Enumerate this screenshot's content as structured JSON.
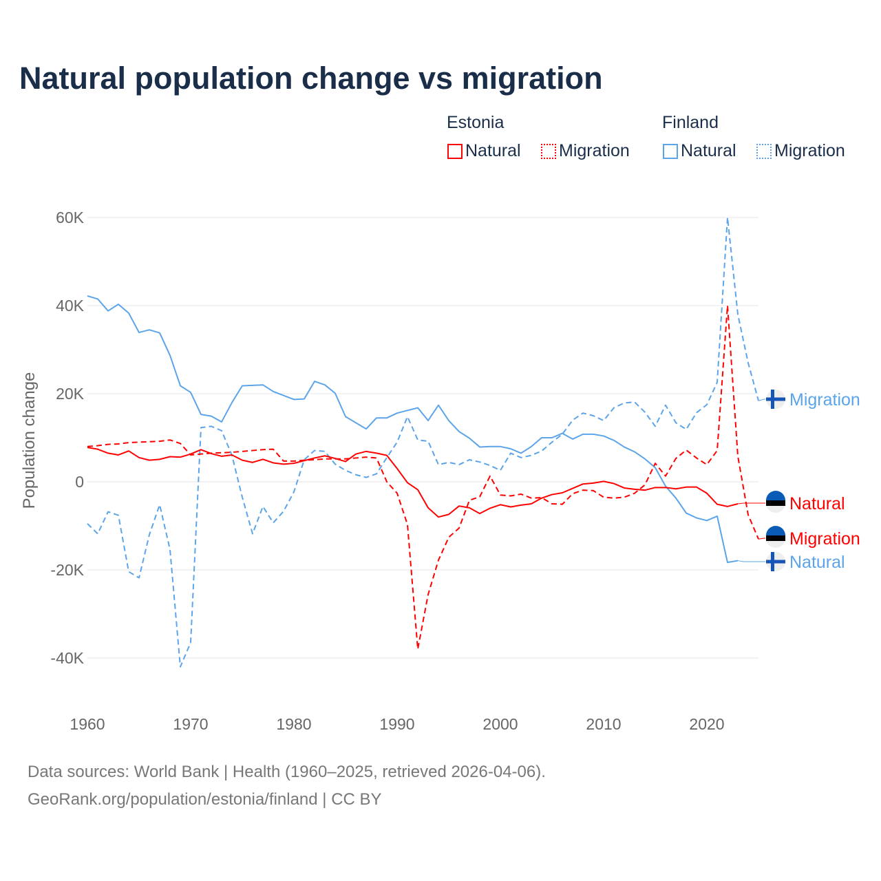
{
  "title": "Natural population change vs migration",
  "legend": {
    "groups": [
      {
        "name": "Estonia",
        "items": [
          "Natural",
          "Migration"
        ]
      },
      {
        "name": "Finland",
        "items": [
          "Natural",
          "Migration"
        ]
      }
    ]
  },
  "colors": {
    "estonia": "#ff0000",
    "finland": "#5ba4ea"
  },
  "footer": {
    "line1": "Data sources: World Bank | Health (1960–2025, retrieved 2026-04-06).",
    "line2": "GeoRank.org/population/estonia/finland | CC BY"
  },
  "chart_data": {
    "type": "line",
    "title": "Natural population change vs migration",
    "xlabel": "",
    "ylabel": "Population change",
    "xlim": [
      1960,
      2025
    ],
    "ylim": [
      -50000,
      65000
    ],
    "xticks": [
      1960,
      1970,
      1980,
      1990,
      2000,
      2010,
      2020
    ],
    "yticks": [
      {
        "v": 60000,
        "l": "60K"
      },
      {
        "v": 40000,
        "l": "40K"
      },
      {
        "v": 20000,
        "l": "20K"
      },
      {
        "v": 0,
        "l": "0"
      },
      {
        "v": -20000,
        "l": "-20K"
      },
      {
        "v": -40000,
        "l": "-40K"
      }
    ],
    "x_start": 1960,
    "series": [
      {
        "name": "Finland Natural",
        "label": "Natural",
        "country": "finland",
        "dash": false,
        "values_k": [
          42.2,
          41.5,
          38.8,
          40.3,
          38.3,
          33.9,
          34.5,
          33.8,
          28.7,
          21.8,
          20.3,
          15.3,
          14.9,
          13.6,
          18,
          21.8,
          21.9,
          22,
          20.5,
          19.6,
          18.7,
          18.8,
          22.8,
          22,
          20.1,
          14.8,
          13.4,
          12,
          14.5,
          14.5,
          15.6,
          16.2,
          16.8,
          13.9,
          17.4,
          13.9,
          11.4,
          9.9,
          7.9,
          8,
          8,
          7.5,
          6.5,
          8,
          10,
          10,
          11,
          9.7,
          10.8,
          10.8,
          10.4,
          9.4,
          7.9,
          6.8,
          5.2,
          3.2,
          -1,
          -3.7,
          -7.1,
          -8.2,
          -8.8,
          -7.8,
          -18.3,
          -17.9,
          null,
          null
        ]
      },
      {
        "name": "Finland Migration",
        "label": "Migration",
        "country": "finland",
        "dash": true,
        "values_k": [
          -9.5,
          -11.8,
          -6.8,
          -7.6,
          -20.4,
          -21.8,
          -12,
          -5.2,
          -15.4,
          -42,
          -36.5,
          12.3,
          12.6,
          11.6,
          6,
          -3.5,
          -11.8,
          -5.6,
          -9.3,
          -6.7,
          -2.3,
          5,
          7.1,
          6.9,
          4,
          2.6,
          1.6,
          1,
          1.8,
          5.5,
          9,
          14.8,
          9.5,
          9.2,
          3.9,
          4.4,
          3.9,
          5,
          4.5,
          3.7,
          2.6,
          6.5,
          5.5,
          6,
          7,
          9,
          10.8,
          14,
          15.6,
          15,
          13.9,
          16.8,
          17.9,
          18.1,
          15.8,
          12.6,
          17.4,
          13.4,
          11.9,
          15.7,
          17.5,
          22.6,
          60,
          38,
          27,
          18.4
        ]
      },
      {
        "name": "Estonia Natural",
        "label": "Natural",
        "country": "estonia",
        "dash": false,
        "values_k": [
          7.8,
          7.4,
          6.5,
          6.1,
          7,
          5.5,
          4.9,
          5.1,
          5.7,
          5.6,
          6.3,
          7.3,
          6.4,
          5.8,
          6.1,
          4.9,
          4.4,
          5.1,
          4.3,
          4,
          4.2,
          4.8,
          5.4,
          5.9,
          5.3,
          4.6,
          6.3,
          6.9,
          6.5,
          6,
          3,
          -0.2,
          -1.8,
          -5.9,
          -8,
          -7.4,
          -5.5,
          -5.9,
          -7.2,
          -6,
          -5.2,
          -5.7,
          -5.3,
          -5,
          -3.7,
          -2.9,
          -2.5,
          -1.5,
          -0.5,
          -0.3,
          0.1,
          -0.4,
          -1.4,
          -1.7,
          -1.9,
          -1.3,
          -1.3,
          -1.6,
          -1.2,
          -1.2,
          -2.6,
          -5.1,
          -5.6,
          -5,
          null,
          null
        ]
      },
      {
        "name": "Estonia Migration",
        "label": "Migration",
        "country": "estonia",
        "dash": true,
        "values_k": [
          8,
          8.2,
          8.5,
          8.6,
          8.9,
          9,
          9.1,
          9.2,
          9.5,
          8.7,
          6.1,
          6.3,
          6.5,
          6.6,
          6.7,
          6.9,
          7.1,
          7.3,
          7.4,
          4.7,
          4.7,
          4.9,
          5,
          5.2,
          5.2,
          5.2,
          5.4,
          5.6,
          5.4,
          0,
          -2.6,
          -9.7,
          -38,
          -25.6,
          -17.8,
          -12.6,
          -10.5,
          -4.2,
          -3.4,
          1.3,
          -3,
          -3.2,
          -2.8,
          -3.7,
          -3.6,
          -5,
          -5.1,
          -2.7,
          -1.9,
          -2,
          -3.5,
          -3.7,
          -3.5,
          -2.6,
          -0.7,
          4.2,
          1.3,
          5.3,
          7.2,
          5.4,
          3.9,
          7.1,
          40,
          5.8,
          -7.5,
          -13
        ]
      }
    ]
  }
}
